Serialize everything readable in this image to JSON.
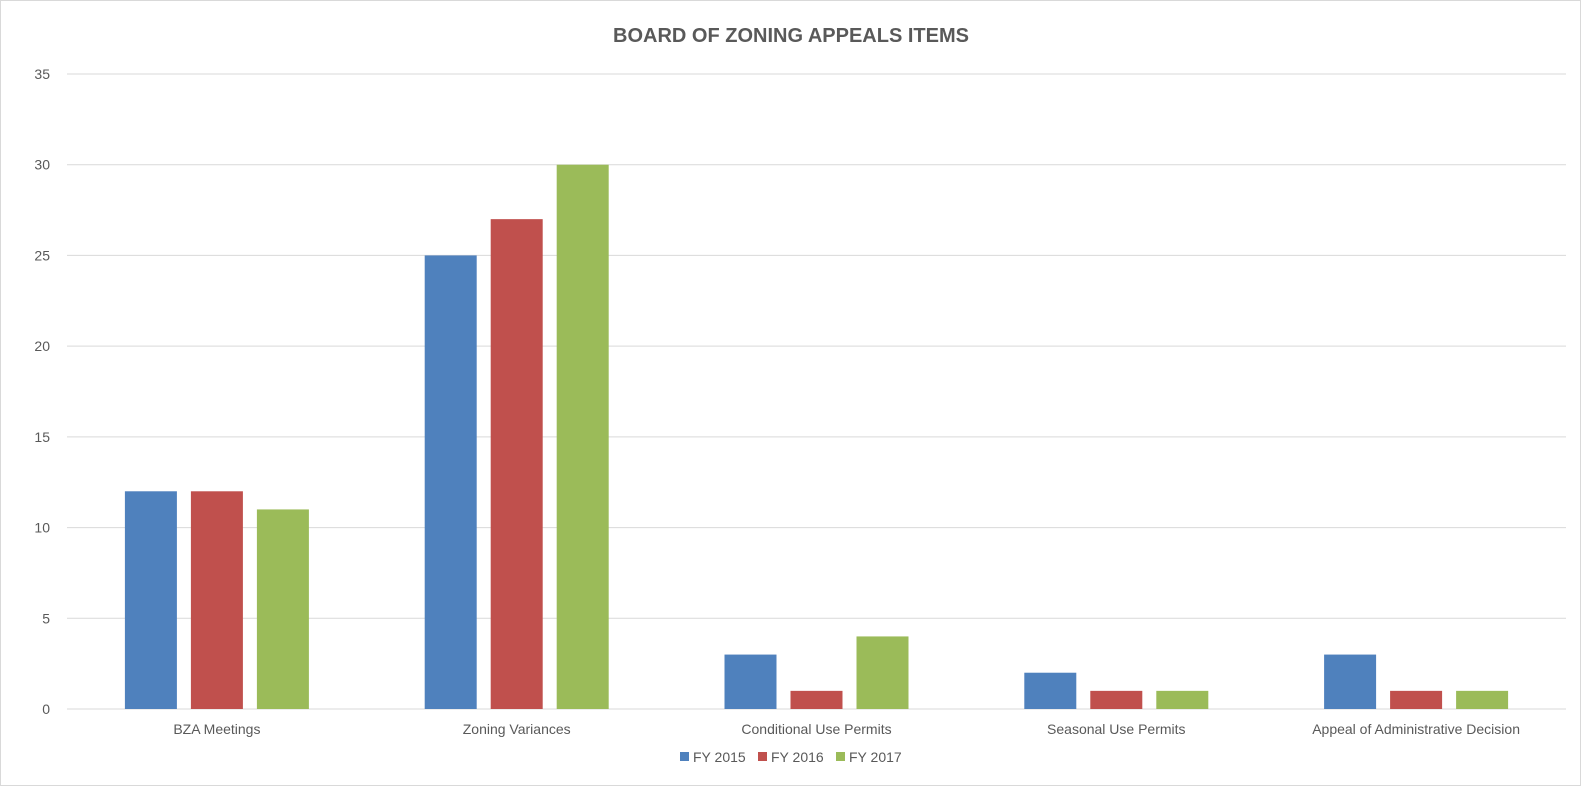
{
  "chart_data": {
    "type": "bar",
    "title": "BOARD OF ZONING APPEALS ITEMS",
    "xlabel": "",
    "ylabel": "",
    "ylim": [
      0,
      35
    ],
    "yticks": [
      0,
      5,
      10,
      15,
      20,
      25,
      30,
      35
    ],
    "grid": true,
    "legend_position": "bottom",
    "categories": [
      "BZA Meetings",
      "Zoning Variances",
      "Conditional Use Permits",
      "Seasonal Use Permits",
      "Appeal of Administrative Decision"
    ],
    "series": [
      {
        "name": "FY 2015",
        "color": "#4f81bd",
        "values": [
          12,
          25,
          3,
          2,
          3
        ]
      },
      {
        "name": "FY 2016",
        "color": "#c0504d",
        "values": [
          12,
          27,
          1,
          1,
          1
        ]
      },
      {
        "name": "FY 2017",
        "color": "#9bbb59",
        "values": [
          11,
          30,
          4,
          1,
          1
        ]
      }
    ]
  }
}
